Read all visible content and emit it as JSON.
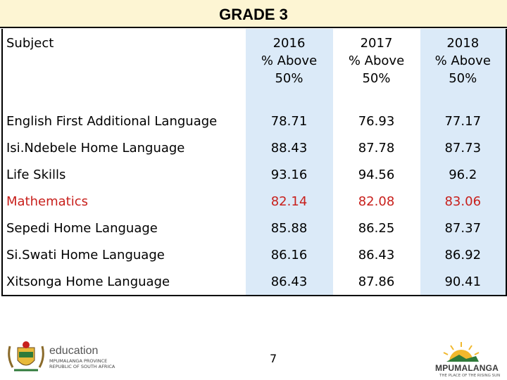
{
  "title": "GRADE 3",
  "header": {
    "subject": "Subject",
    "years": [
      {
        "year": "2016",
        "line2": "% Above",
        "line3": "50%"
      },
      {
        "year": "2017",
        "line2": "% Above",
        "line3": "50%"
      },
      {
        "year": "2018",
        "line2": "% Above",
        "line3": "50%"
      }
    ]
  },
  "rows": [
    {
      "subject": "English First Additional Language",
      "v2016": "78.71",
      "v2017": "76.93",
      "v2018": "77.17"
    },
    {
      "subject": "Isi.Ndebele Home Language",
      "v2016": "88.43",
      "v2017": "87.78",
      "v2018": "87.73"
    },
    {
      "subject": "Life Skills",
      "v2016": "93.16",
      "v2017": "94.56",
      "v2018": "96.2"
    },
    {
      "subject": "Mathematics",
      "v2016": "82.14",
      "v2017": "82.08",
      "v2018": "83.06"
    },
    {
      "subject": "Sepedi Home Language",
      "v2016": "85.88",
      "v2017": "86.25",
      "v2018": "87.37"
    },
    {
      "subject": "Si.Swati Home Language",
      "v2016": "86.16",
      "v2017": "86.43",
      "v2018": "86.92"
    },
    {
      "subject": "Xitsonga Home Language",
      "v2016": "86.43",
      "v2017": "87.86",
      "v2018": "90.41"
    }
  ],
  "page_number": "7",
  "logo_left": {
    "name": "education",
    "sub1": "MPUMALANGA PROVINCE",
    "sub2": "REPUBLIC OF SOUTH AFRICA",
    "icon": "coat-of-arms-icon"
  },
  "logo_right": {
    "name": "MPUMALANGA",
    "sub": "THE PLACE OF THE RISING SUN",
    "icon": "rising-sun-icon"
  },
  "colors": {
    "title_bg": "#fdf5d3",
    "column_bg": "#dbeaf8",
    "highlight_text": "#c8201c"
  }
}
